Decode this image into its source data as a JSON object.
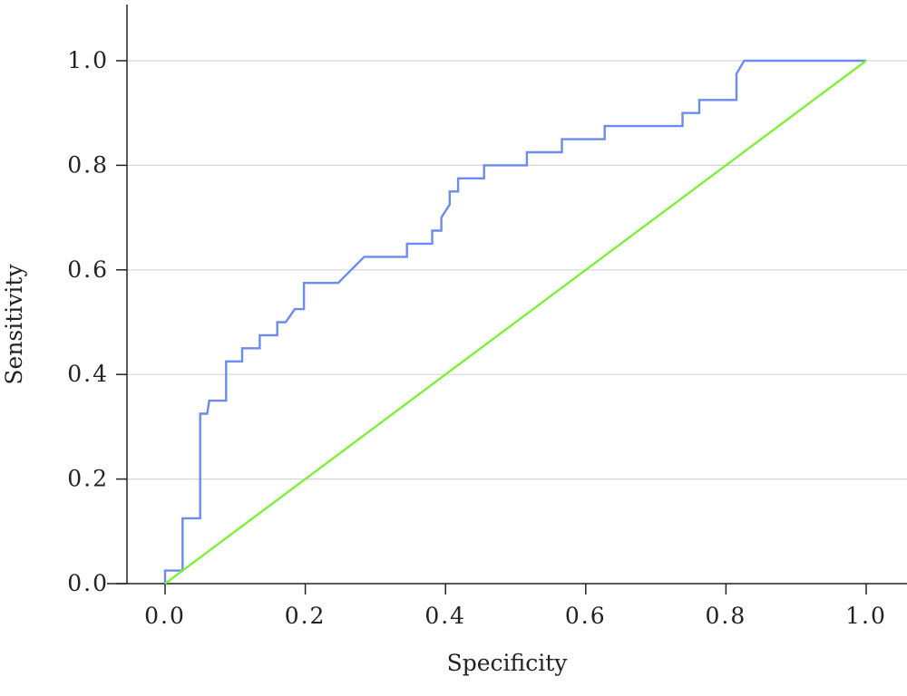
{
  "chart_data": {
    "type": "line",
    "title": "",
    "xlabel": "Specificity",
    "ylabel": "Sensitivity",
    "xlim": [
      -0.07,
      1.055
    ],
    "ylim": [
      0.0,
      1.1
    ],
    "xticks": [
      "0.0",
      "0.2",
      "0.4",
      "0.6",
      "0.8",
      "1.0"
    ],
    "yticks": [
      "0.0",
      "0.2",
      "0.4",
      "0.6",
      "0.8",
      "1.0"
    ],
    "grid": "horizontal",
    "legend": "none",
    "series": [
      {
        "color": "#6b8cee",
        "points": [
          [
            0.0,
            0.0
          ],
          [
            0.0,
            0.025
          ],
          [
            0.025,
            0.025
          ],
          [
            0.025,
            0.125
          ],
          [
            0.05,
            0.125
          ],
          [
            0.05,
            0.325
          ],
          [
            0.06,
            0.325
          ],
          [
            0.063,
            0.35
          ],
          [
            0.087,
            0.35
          ],
          [
            0.087,
            0.425
          ],
          [
            0.11,
            0.425
          ],
          [
            0.11,
            0.45
          ],
          [
            0.135,
            0.45
          ],
          [
            0.135,
            0.475
          ],
          [
            0.16,
            0.475
          ],
          [
            0.16,
            0.5
          ],
          [
            0.172,
            0.5
          ],
          [
            0.185,
            0.525
          ],
          [
            0.198,
            0.525
          ],
          [
            0.198,
            0.575
          ],
          [
            0.247,
            0.575
          ],
          [
            0.284,
            0.625
          ],
          [
            0.345,
            0.625
          ],
          [
            0.345,
            0.65
          ],
          [
            0.381,
            0.65
          ],
          [
            0.381,
            0.675
          ],
          [
            0.394,
            0.675
          ],
          [
            0.394,
            0.7
          ],
          [
            0.406,
            0.725
          ],
          [
            0.406,
            0.75
          ],
          [
            0.418,
            0.75
          ],
          [
            0.418,
            0.775
          ],
          [
            0.455,
            0.775
          ],
          [
            0.455,
            0.8
          ],
          [
            0.516,
            0.8
          ],
          [
            0.516,
            0.825
          ],
          [
            0.566,
            0.825
          ],
          [
            0.566,
            0.85
          ],
          [
            0.627,
            0.85
          ],
          [
            0.627,
            0.875
          ],
          [
            0.738,
            0.875
          ],
          [
            0.738,
            0.9
          ],
          [
            0.762,
            0.9
          ],
          [
            0.762,
            0.925
          ],
          [
            0.815,
            0.925
          ],
          [
            0.815,
            0.975
          ],
          [
            0.826,
            1.0
          ],
          [
            1.0,
            1.0
          ]
        ]
      },
      {
        "color": "#7ef03a",
        "points": [
          [
            0.0,
            0.0
          ],
          [
            1.0,
            1.0
          ]
        ]
      }
    ]
  }
}
